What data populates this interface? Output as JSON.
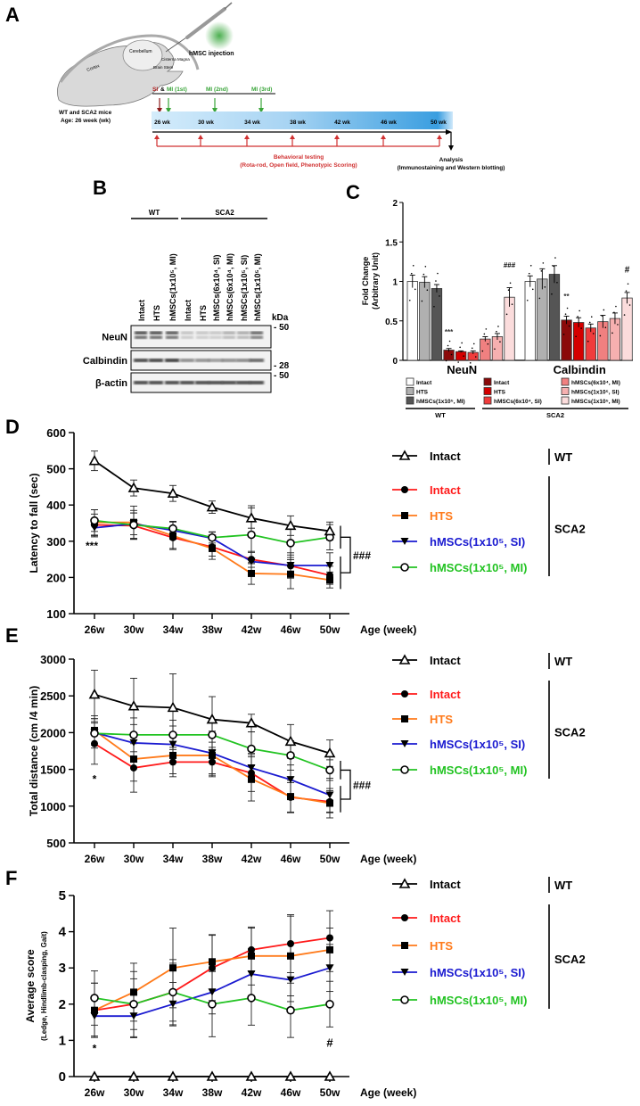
{
  "panel_labels": {
    "a": "A",
    "b": "B",
    "c": "C",
    "d": "D",
    "e": "E",
    "f": "F"
  },
  "panelA": {
    "injection": "hMSC injection",
    "brain_labels": {
      "cerebellum": "Cerebellum",
      "cisterna": "Cisterna Magna",
      "brainstem": "Brain Stem",
      "cortex": "Cortex"
    },
    "mice": "WT and SCA2 mice",
    "age": "Age: 26 week (wk)",
    "si": "SI",
    "amp": "&",
    "mi": [
      "MI (1st)",
      "MI (2nd)",
      "MI (3rd)"
    ],
    "weeks": [
      "26 wk",
      "30 wk",
      "34 wk",
      "38 wk",
      "42 wk",
      "46 wk",
      "50 wk"
    ],
    "behavioral": "Behavioral testing",
    "tests": "(Rota-rod, Open field, Phenotypic Scoring)",
    "analysis": "Analysis",
    "analysis_methods": "(Immunostaining and Western blotting)",
    "colors": {
      "si": "#b01c1c",
      "mi": "#3aa53a",
      "behavior": "#d03030"
    }
  },
  "panelB": {
    "groups": [
      "WT",
      "SCA2"
    ],
    "lanes": [
      "Intact",
      "HTS",
      "hMSCs(1x10⁵, MI)",
      "Intact",
      "HTS",
      "hMSCs(6x10⁴, SI)",
      "hMSCs(6x10⁴, MI)",
      "hMSCs(1x10⁵, SI)",
      "hMSCs(1x10⁵, MI)"
    ],
    "rows": [
      "NeuN",
      "Calbindin",
      "β-actin"
    ],
    "kda": "kDa",
    "markers": [
      "50",
      "28",
      "50"
    ]
  },
  "chart_data": [
    {
      "id": "C",
      "type": "bar",
      "ylabel": [
        "Fold Change",
        "(Arbitrary Unit)"
      ],
      "ylim": [
        0,
        2
      ],
      "yticks": [
        "0",
        "0.5",
        "1",
        "1.5",
        "2"
      ],
      "categories": [
        "NeuN",
        "Calbindin"
      ],
      "series": [
        {
          "name": "Intact",
          "group": "WT",
          "color": "#ffffff",
          "values": [
            1.0,
            1.0
          ],
          "err": [
            0.08,
            0.07
          ]
        },
        {
          "name": "HTS",
          "group": "WT",
          "color": "#b0b0b0",
          "values": [
            0.99,
            1.03
          ],
          "err": [
            0.07,
            0.13
          ]
        },
        {
          "name": "hMSCs(1x10⁵, MI)",
          "group": "WT",
          "color": "#555555",
          "values": [
            0.91,
            1.09
          ],
          "err": [
            0.05,
            0.11
          ]
        },
        {
          "name": "Intact",
          "group": "SCA2",
          "color": "#8b0a0a",
          "values": [
            0.13,
            0.51
          ],
          "err": [
            0.02,
            0.05
          ]
        },
        {
          "name": "HTS",
          "group": "SCA2",
          "color": "#d40000",
          "values": [
            0.11,
            0.48
          ],
          "err": [
            0.01,
            0.06
          ]
        },
        {
          "name": "hMSCs(6x10⁴, SI)",
          "group": "SCA2",
          "color": "#f03c3c",
          "values": [
            0.1,
            0.41
          ],
          "err": [
            0.02,
            0.05
          ]
        },
        {
          "name": "hMSCs(6x10⁴, MI)",
          "group": "SCA2",
          "color": "#f08080",
          "values": [
            0.27,
            0.49
          ],
          "err": [
            0.03,
            0.08
          ]
        },
        {
          "name": "hMSCs(1x10⁵, SI)",
          "group": "SCA2",
          "color": "#f6b0b0",
          "values": [
            0.3,
            0.53
          ],
          "err": [
            0.04,
            0.07
          ]
        },
        {
          "name": "hMSCs(1x10⁵, MI)",
          "group": "SCA2",
          "color": "#fbdcdc",
          "values": [
            0.8,
            0.79
          ],
          "err": [
            0.12,
            0.07
          ]
        }
      ],
      "annotations": [
        {
          "text": "***",
          "series": 3,
          "category": 0
        },
        {
          "text": "###",
          "series": 8,
          "category": 0
        },
        {
          "text": "**",
          "series": 3,
          "category": 1
        },
        {
          "text": "#",
          "series": 8,
          "category": 1
        }
      ],
      "legend_groups": [
        "WT",
        "SCA2"
      ],
      "legend": "bottom"
    },
    {
      "id": "D",
      "type": "line",
      "ylabel": "Latency to fall (sec)",
      "xlabel": "Age (week)",
      "ylim": [
        100,
        600
      ],
      "yticks": [
        "100",
        "200",
        "300",
        "400",
        "500",
        "600"
      ],
      "x": [
        "26w",
        "30w",
        "34w",
        "38w",
        "42w",
        "46w",
        "50w"
      ],
      "series": [
        {
          "name": "Intact",
          "group": "WT",
          "color": "#000000",
          "marker": "triangle-open",
          "values": [
            522,
            447,
            432,
            394,
            364,
            343,
            328
          ],
          "err": [
            27,
            22,
            22,
            17,
            28,
            27,
            25
          ]
        },
        {
          "name": "Intact",
          "group": "SCA2",
          "color": "#ff1a1a",
          "marker": "circle",
          "values": [
            345,
            343,
            310,
            284,
            250,
            232,
            206
          ],
          "err": [
            30,
            35,
            30,
            25,
            22,
            30,
            25
          ]
        },
        {
          "name": "HTS",
          "group": "SCA2",
          "color": "#ff7a1a",
          "marker": "square",
          "values": [
            352,
            352,
            315,
            280,
            211,
            209,
            193
          ],
          "err": [
            35,
            45,
            38,
            30,
            30,
            40,
            22
          ]
        },
        {
          "name": "hMSCs(1x10⁵, SI)",
          "group": "SCA2",
          "color": "#1a1ad0",
          "marker": "triangle-down",
          "values": [
            337,
            348,
            330,
            308,
            244,
            233,
            233
          ],
          "err": [
            25,
            30,
            25,
            18,
            25,
            35,
            35
          ]
        },
        {
          "name": "hMSCs(1x10⁵, MI)",
          "group": "SCA2",
          "color": "#22c322",
          "marker": "circle-open",
          "values": [
            357,
            345,
            335,
            310,
            318,
            295,
            311
          ],
          "err": [
            30,
            40,
            20,
            15,
            80,
            40,
            35
          ]
        }
      ],
      "annotations": [
        {
          "text": "***",
          "x": "26w",
          "y": 290
        },
        {
          "text": "###",
          "bracket": true
        }
      ],
      "legend_groups": [
        "WT",
        "SCA2"
      ],
      "legend": "right"
    },
    {
      "id": "E",
      "type": "line",
      "ylabel": "Total distance (cm /4 min)",
      "xlabel": "Age (week)",
      "ylim": [
        500,
        3000
      ],
      "yticks": [
        "500",
        "1000",
        "1500",
        "2000",
        "2500",
        "3000"
      ],
      "x": [
        "26w",
        "30w",
        "34w",
        "38w",
        "42w",
        "46w",
        "50w"
      ],
      "series": [
        {
          "name": "Intact",
          "group": "WT",
          "color": "#000000",
          "marker": "triangle-open",
          "values": [
            2520,
            2360,
            2340,
            2180,
            2130,
            1880,
            1720
          ],
          "err": [
            330,
            380,
            460,
            310,
            120,
            230,
            180
          ]
        },
        {
          "name": "Intact",
          "group": "SCA2",
          "color": "#ff1a1a",
          "marker": "circle",
          "values": [
            1850,
            1520,
            1600,
            1600,
            1450,
            1120,
            1060
          ],
          "err": [
            280,
            330,
            200,
            200,
            250,
            200,
            150
          ]
        },
        {
          "name": "HTS",
          "group": "SCA2",
          "color": "#ff7a1a",
          "marker": "square",
          "values": [
            2030,
            1640,
            1690,
            1690,
            1370,
            1130,
            1040
          ],
          "err": [
            200,
            300,
            250,
            250,
            300,
            220,
            200
          ]
        },
        {
          "name": "hMSCs(1x10⁵, SI)",
          "group": "SCA2",
          "color": "#1a1ad0",
          "marker": "triangle-down",
          "values": [
            2000,
            1860,
            1840,
            1720,
            1520,
            1360,
            1150
          ],
          "err": [
            150,
            250,
            250,
            300,
            200,
            200,
            230
          ]
        },
        {
          "name": "hMSCs(1x10⁵, MI)",
          "group": "SCA2",
          "color": "#22c322",
          "marker": "circle-open",
          "values": [
            1990,
            1970,
            1970,
            1970,
            1780,
            1690,
            1490
          ],
          "err": [
            200,
            230,
            200,
            200,
            230,
            200,
            140
          ]
        }
      ],
      "annotations": [
        {
          "text": "*",
          "x": "26w",
          "y": 1380
        },
        {
          "text": "###",
          "bracket": true
        }
      ],
      "legend_groups": [
        "WT",
        "SCA2"
      ],
      "legend": "right"
    },
    {
      "id": "F",
      "type": "line",
      "ylabel": "Average score",
      "ylabel_sub": "(Ledge, Hindlimb-clasping, Gait)",
      "xlabel": "Age (week)",
      "ylim": [
        0,
        5
      ],
      "yticks": [
        "0",
        "1",
        "2",
        "3",
        "4",
        "5"
      ],
      "x": [
        "26w",
        "30w",
        "34w",
        "38w",
        "42w",
        "46w",
        "50w"
      ],
      "series": [
        {
          "name": "Intact",
          "group": "WT",
          "color": "#000000",
          "marker": "triangle-open",
          "values": [
            0,
            0,
            0,
            0,
            0,
            0,
            0
          ],
          "err": [
            0,
            0,
            0,
            0,
            0,
            0,
            0
          ]
        },
        {
          "name": "Intact",
          "group": "SCA2",
          "color": "#ff1a1a",
          "marker": "circle",
          "values": [
            1.83,
            2.0,
            2.33,
            3.0,
            3.5,
            3.67,
            3.83
          ],
          "err": [
            0.75,
            0.9,
            0.8,
            0.9,
            0.6,
            0.8,
            0.75
          ]
        },
        {
          "name": "HTS",
          "group": "SCA2",
          "color": "#ff7a1a",
          "marker": "square",
          "values": [
            1.83,
            2.33,
            3.0,
            3.17,
            3.33,
            3.33,
            3.5
          ],
          "err": [
            0.75,
            0.8,
            1.1,
            0.75,
            0.8,
            1.1,
            0.6
          ]
        },
        {
          "name": "hMSCs(1x10⁵, SI)",
          "group": "SCA2",
          "color": "#1a1ad0",
          "marker": "triangle-down",
          "values": [
            1.67,
            1.67,
            2.0,
            2.33,
            2.83,
            2.67,
            3.0
          ],
          "err": [
            0.55,
            0.6,
            0.6,
            0.6,
            0.7,
            0.6,
            0.65
          ]
        },
        {
          "name": "hMSCs(1x10⁵, MI)",
          "group": "SCA2",
          "color": "#22c322",
          "marker": "circle-open",
          "values": [
            2.17,
            2.0,
            2.33,
            2.0,
            2.17,
            1.83,
            2.0
          ],
          "err": [
            0.75,
            0.7,
            0.9,
            0.9,
            0.75,
            0.75,
            0.63
          ]
        }
      ],
      "annotations": [
        {
          "text": "*",
          "x": "26w",
          "y": 0.8
        },
        {
          "text": "#",
          "x": "50w",
          "y": 0.95
        }
      ],
      "legend_groups": [
        "WT",
        "SCA2"
      ],
      "legend": "right"
    }
  ]
}
